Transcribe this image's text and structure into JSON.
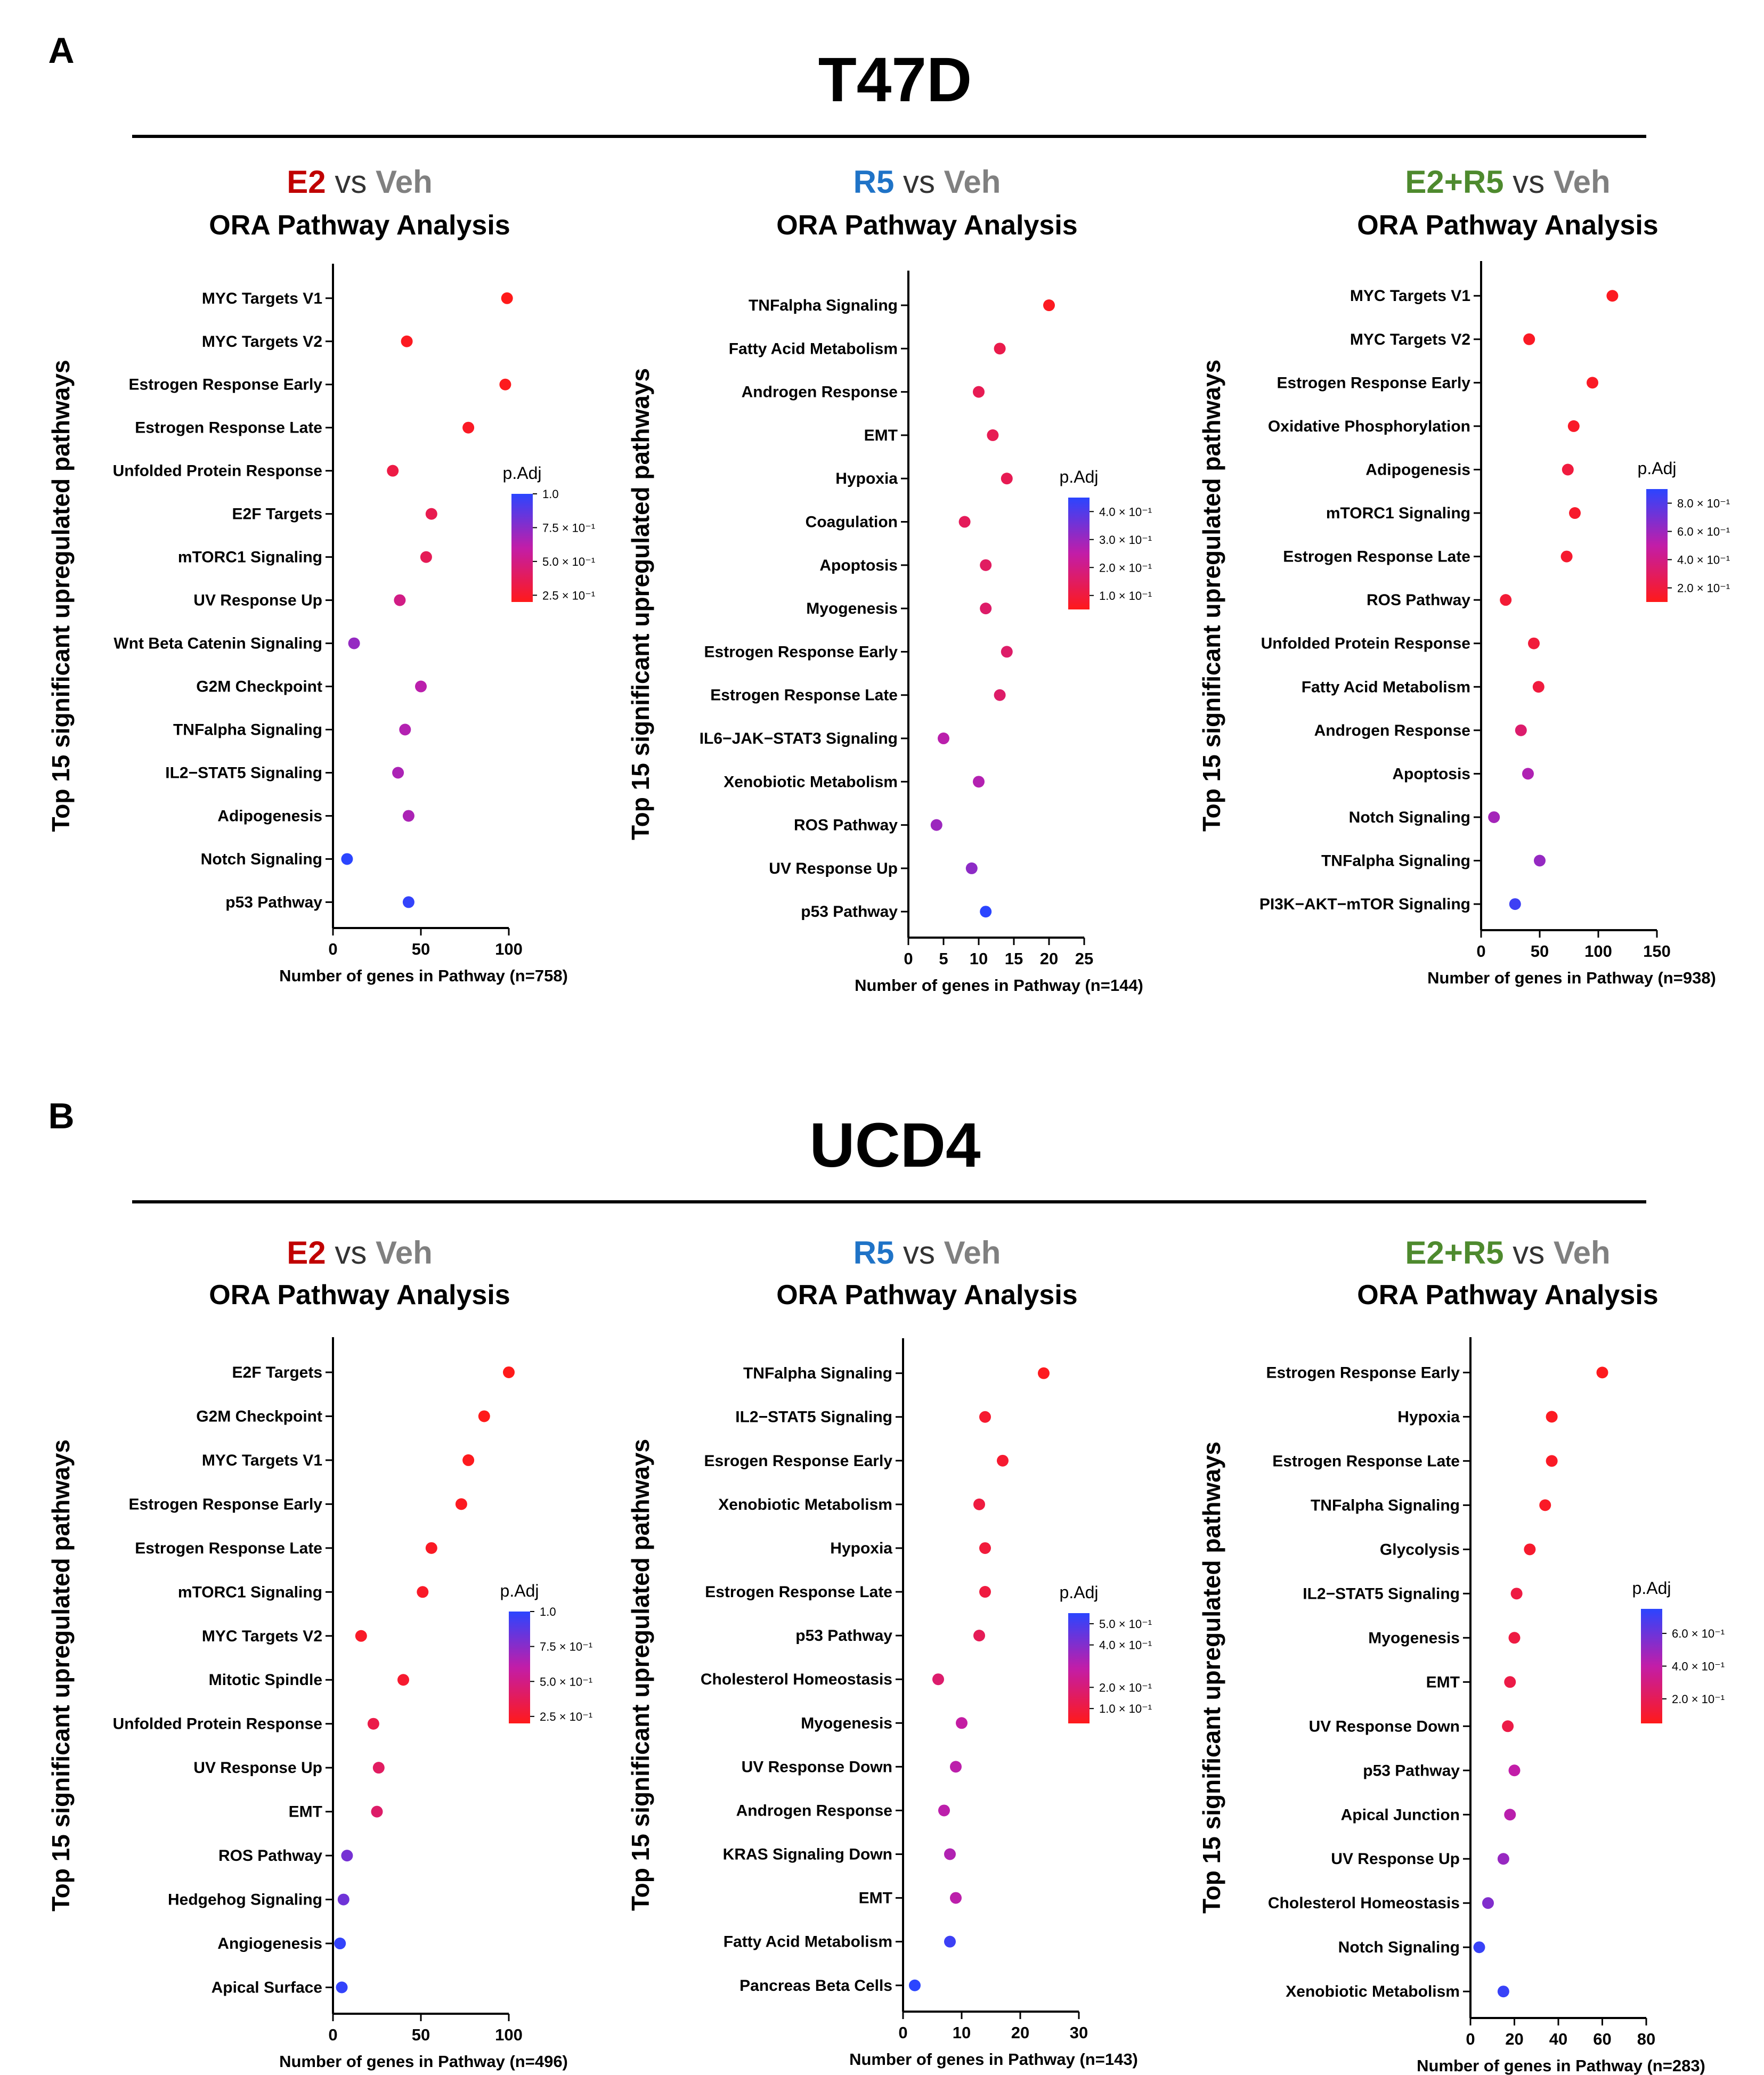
{
  "sections": [
    {
      "letter": "A",
      "title": "T47D"
    },
    {
      "letter": "B",
      "title": "UCD4"
    }
  ],
  "palette": {
    "E2": "#c00000",
    "R5": "#1f73c7",
    "E2+R5": "#4e8a2e",
    "Veh": "#808080",
    "vs": "#333333",
    "low": "#ff1a1a",
    "high": "#2b45ff"
  },
  "chart_data": [
    {
      "type": "scatter",
      "section": "T47D",
      "title_parts": [
        {
          "text": "E2",
          "key": "E2"
        },
        {
          "text": " vs ",
          "key": "vs"
        },
        {
          "text": "Veh",
          "key": "Veh"
        }
      ],
      "subtitle": "ORA Pathway Analysis",
      "ylabel": "Top 15 significant upregulated pathways",
      "xlabel": "Number of genes in Pathway (n=758)",
      "xlim": [
        0,
        100
      ],
      "xticks": [
        0,
        50,
        100
      ],
      "legend_title": "p.Adj",
      "legend_min": 0.2,
      "legend_max": 1.0,
      "legend_ticks": [
        {
          "label": "1.0",
          "v": 1.0
        },
        {
          "label": "7.5 × 10⁻¹",
          "v": 0.75
        },
        {
          "label": "5.0 × 10⁻¹",
          "v": 0.5
        },
        {
          "label": "2.5 × 10⁻¹",
          "v": 0.25
        }
      ],
      "points": [
        {
          "pathway": "MYC Targets V1",
          "x": 99,
          "padj": 0.2
        },
        {
          "pathway": "MYC Targets V2",
          "x": 42,
          "padj": 0.22
        },
        {
          "pathway": "Estrogen Response Early",
          "x": 98,
          "padj": 0.21
        },
        {
          "pathway": "Estrogen Response Late",
          "x": 77,
          "padj": 0.23
        },
        {
          "pathway": "Unfolded Protein Response",
          "x": 34,
          "padj": 0.32
        },
        {
          "pathway": "E2F Targets",
          "x": 56,
          "padj": 0.35
        },
        {
          "pathway": "mTORC1 Signaling",
          "x": 53,
          "padj": 0.37
        },
        {
          "pathway": "UV Response Up",
          "x": 38,
          "padj": 0.5
        },
        {
          "pathway": "Wnt Beta Catenin Signaling",
          "x": 12,
          "padj": 0.72
        },
        {
          "pathway": "G2M Checkpoint",
          "x": 50,
          "padj": 0.62
        },
        {
          "pathway": "TNFalpha Signaling",
          "x": 41,
          "padj": 0.64
        },
        {
          "pathway": "IL2−STAT5 Signaling",
          "x": 37,
          "padj": 0.66
        },
        {
          "pathway": "Adipogenesis",
          "x": 43,
          "padj": 0.66
        },
        {
          "pathway": "Notch Signaling",
          "x": 8,
          "padj": 1.0
        },
        {
          "pathway": "p53 Pathway",
          "x": 43,
          "padj": 0.98
        }
      ]
    },
    {
      "type": "scatter",
      "section": "T47D",
      "title_parts": [
        {
          "text": "R5",
          "key": "R5"
        },
        {
          "text": " vs ",
          "key": "vs"
        },
        {
          "text": "Veh",
          "key": "Veh"
        }
      ],
      "subtitle": "ORA Pathway Analysis",
      "ylabel": "Top 15 significant upregulated pathways",
      "xlabel": "Number of genes in Pathway (n=144)",
      "xlim": [
        0,
        25
      ],
      "xticks": [
        0,
        5,
        10,
        15,
        20,
        25
      ],
      "legend_title": "p.Adj",
      "legend_min": 0.05,
      "legend_max": 0.45,
      "legend_ticks": [
        {
          "label": "4.0 × 10⁻¹",
          "v": 0.4
        },
        {
          "label": "3.0 × 10⁻¹",
          "v": 0.3
        },
        {
          "label": "2.0 × 10⁻¹",
          "v": 0.2
        },
        {
          "label": "1.0 × 10⁻¹",
          "v": 0.1
        }
      ],
      "points": [
        {
          "pathway": "TNFalpha Signaling",
          "x": 20,
          "padj": 0.06
        },
        {
          "pathway": "Fatty Acid Metabolism",
          "x": 13,
          "padj": 0.12
        },
        {
          "pathway": "Androgen Response",
          "x": 10,
          "padj": 0.13
        },
        {
          "pathway": "EMT",
          "x": 12,
          "padj": 0.13
        },
        {
          "pathway": "Hypoxia",
          "x": 14,
          "padj": 0.13
        },
        {
          "pathway": "Coagulation",
          "x": 8,
          "padj": 0.14
        },
        {
          "pathway": "Apoptosis",
          "x": 11,
          "padj": 0.15
        },
        {
          "pathway": "Myogenesis",
          "x": 11,
          "padj": 0.16
        },
        {
          "pathway": "Estrogen Response Early",
          "x": 14,
          "padj": 0.16
        },
        {
          "pathway": "Estrogen Response Late",
          "x": 13,
          "padj": 0.16
        },
        {
          "pathway": "IL6−JAK−STAT3 Signaling",
          "x": 5,
          "padj": 0.26
        },
        {
          "pathway": "Xenobiotic Metabolism",
          "x": 10,
          "padj": 0.27
        },
        {
          "pathway": "ROS Pathway",
          "x": 4,
          "padj": 0.3
        },
        {
          "pathway": "UV Response Up",
          "x": 9,
          "padj": 0.32
        },
        {
          "pathway": "p53 Pathway",
          "x": 11,
          "padj": 0.45
        }
      ]
    },
    {
      "type": "scatter",
      "section": "T47D",
      "title_parts": [
        {
          "text": "E2+R5",
          "key": "E2+R5"
        },
        {
          "text": " vs ",
          "key": "vs"
        },
        {
          "text": "Veh",
          "key": "Veh"
        }
      ],
      "subtitle": "ORA Pathway Analysis",
      "ylabel": "Top 15 significant upregulated pathways",
      "xlabel": "Number of genes in Pathway (n=938)",
      "xlim": [
        0,
        150
      ],
      "xticks": [
        0,
        50,
        100,
        150
      ],
      "legend_title": "p.Adj",
      "legend_min": 0.1,
      "legend_max": 0.9,
      "legend_ticks": [
        {
          "label": "8.0 × 10⁻¹",
          "v": 0.8
        },
        {
          "label": "6.0 × 10⁻¹",
          "v": 0.6
        },
        {
          "label": "4.0 × 10⁻¹",
          "v": 0.4
        },
        {
          "label": "2.0 × 10⁻¹",
          "v": 0.2
        }
      ],
      "points": [
        {
          "pathway": "MYC Targets V1",
          "x": 112,
          "padj": 0.12
        },
        {
          "pathway": "MYC Targets V2",
          "x": 41,
          "padj": 0.13
        },
        {
          "pathway": "Estrogen Response Early",
          "x": 95,
          "padj": 0.13
        },
        {
          "pathway": "Oxidative Phosphorylation",
          "x": 79,
          "padj": 0.14
        },
        {
          "pathway": "Adipogenesis",
          "x": 74,
          "padj": 0.2
        },
        {
          "pathway": "mTORC1 Signaling",
          "x": 80,
          "padj": 0.15
        },
        {
          "pathway": "Estrogen Response Late",
          "x": 73,
          "padj": 0.16
        },
        {
          "pathway": "ROS Pathway",
          "x": 21,
          "padj": 0.18
        },
        {
          "pathway": "Unfolded Protein Response",
          "x": 45,
          "padj": 0.19
        },
        {
          "pathway": "Fatty Acid Metabolism",
          "x": 49,
          "padj": 0.2
        },
        {
          "pathway": "Androgen Response",
          "x": 34,
          "padj": 0.33
        },
        {
          "pathway": "Apoptosis",
          "x": 40,
          "padj": 0.55
        },
        {
          "pathway": "Notch Signaling",
          "x": 11,
          "padj": 0.58
        },
        {
          "pathway": "TNFalpha Signaling",
          "x": 50,
          "padj": 0.62
        },
        {
          "pathway": "PI3K−AKT−mTOR Signaling",
          "x": 29,
          "padj": 0.85
        }
      ]
    },
    {
      "type": "scatter",
      "section": "UCD4",
      "title_parts": [
        {
          "text": "E2",
          "key": "E2"
        },
        {
          "text": " vs ",
          "key": "vs"
        },
        {
          "text": "Veh",
          "key": "Veh"
        }
      ],
      "subtitle": "ORA Pathway Analysis",
      "ylabel": "Top 15 significant upregulated pathways",
      "xlabel": "Number of genes in Pathway (n=496)",
      "xlim": [
        0,
        100
      ],
      "xticks": [
        0,
        50,
        100
      ],
      "legend_title": "p.Adj",
      "legend_min": 0.2,
      "legend_max": 1.0,
      "legend_ticks": [
        {
          "label": "1.0",
          "v": 1.0
        },
        {
          "label": "7.5 × 10⁻¹",
          "v": 0.75
        },
        {
          "label": "5.0 × 10⁻¹",
          "v": 0.5
        },
        {
          "label": "2.5 × 10⁻¹",
          "v": 0.25
        }
      ],
      "points": [
        {
          "pathway": "E2F Targets",
          "x": 100,
          "padj": 0.2
        },
        {
          "pathway": "G2M Checkpoint",
          "x": 86,
          "padj": 0.2
        },
        {
          "pathway": "MYC Targets V1",
          "x": 77,
          "padj": 0.21
        },
        {
          "pathway": "Estrogen Response Early",
          "x": 73,
          "padj": 0.22
        },
        {
          "pathway": "Estrogen Response Late",
          "x": 56,
          "padj": 0.23
        },
        {
          "pathway": "mTORC1 Signaling",
          "x": 51,
          "padj": 0.24
        },
        {
          "pathway": "MYC Targets V2",
          "x": 16,
          "padj": 0.24
        },
        {
          "pathway": "Mitotic Spindle",
          "x": 40,
          "padj": 0.26
        },
        {
          "pathway": "Unfolded Protein Response",
          "x": 23,
          "padj": 0.33
        },
        {
          "pathway": "UV Response Up",
          "x": 26,
          "padj": 0.4
        },
        {
          "pathway": "EMT",
          "x": 25,
          "padj": 0.42
        },
        {
          "pathway": "ROS Pathway",
          "x": 8,
          "padj": 0.8
        },
        {
          "pathway": "Hedgehog Signaling",
          "x": 6,
          "padj": 0.82
        },
        {
          "pathway": "Angiogenesis",
          "x": 4,
          "padj": 0.98
        },
        {
          "pathway": "Apical Surface",
          "x": 5,
          "padj": 0.98
        }
      ]
    },
    {
      "type": "scatter",
      "section": "UCD4",
      "title_parts": [
        {
          "text": "R5",
          "key": "R5"
        },
        {
          "text": " vs ",
          "key": "vs"
        },
        {
          "text": "Veh",
          "key": "Veh"
        }
      ],
      "subtitle": "ORA Pathway Analysis",
      "ylabel": "Top 15 significant upregulated pathways",
      "xlabel": "Number of genes in Pathway (n=143)",
      "xlim": [
        0,
        30
      ],
      "xticks": [
        0,
        10,
        20,
        30
      ],
      "legend_title": "p.Adj",
      "legend_min": 0.03,
      "legend_max": 0.55,
      "legend_ticks": [
        {
          "label": "5.0 × 10⁻¹",
          "v": 0.5
        },
        {
          "label": "4.0 × 10⁻¹",
          "v": 0.4
        },
        {
          "label": "2.0 × 10⁻¹",
          "v": 0.2
        },
        {
          "label": "1.0 × 10⁻¹",
          "v": 0.1
        }
      ],
      "points": [
        {
          "pathway": "TNFalpha Signaling",
          "x": 24,
          "padj": 0.04
        },
        {
          "pathway": "IL2−STAT5 Signaling",
          "x": 14,
          "padj": 0.07
        },
        {
          "pathway": "Esrogen Response Early",
          "x": 17,
          "padj": 0.07
        },
        {
          "pathway": "Xenobiotic Metabolism",
          "x": 13,
          "padj": 0.1
        },
        {
          "pathway": "Hypoxia",
          "x": 14,
          "padj": 0.09
        },
        {
          "pathway": "Estrogen Response Late",
          "x": 14,
          "padj": 0.1
        },
        {
          "pathway": "p53 Pathway",
          "x": 13,
          "padj": 0.14
        },
        {
          "pathway": "Cholesterol Homeostasis",
          "x": 6,
          "padj": 0.18
        },
        {
          "pathway": "Myogenesis",
          "x": 10,
          "padj": 0.28
        },
        {
          "pathway": "UV Response Down",
          "x": 9,
          "padj": 0.3
        },
        {
          "pathway": "Androgen Response",
          "x": 7,
          "padj": 0.3
        },
        {
          "pathway": "KRAS Signaling Down",
          "x": 8,
          "padj": 0.32
        },
        {
          "pathway": "EMT",
          "x": 9,
          "padj": 0.3
        },
        {
          "pathway": "Fatty Acid Metabolism",
          "x": 8,
          "padj": 0.52
        },
        {
          "pathway": "Pancreas Beta Cells",
          "x": 2,
          "padj": 0.55
        }
      ]
    },
    {
      "type": "scatter",
      "section": "UCD4",
      "title_parts": [
        {
          "text": "E2+R5",
          "key": "E2+R5"
        },
        {
          "text": " vs ",
          "key": "vs"
        },
        {
          "text": "Veh",
          "key": "Veh"
        }
      ],
      "subtitle": "ORA Pathway Analysis",
      "ylabel": "Top 15 significant upregulated pathways",
      "xlabel": "Number of genes in Pathway (n=283)",
      "xlim": [
        0,
        80
      ],
      "xticks": [
        0,
        20,
        40,
        60,
        80
      ],
      "legend_title": "p.Adj",
      "legend_min": 0.05,
      "legend_max": 0.75,
      "legend_ticks": [
        {
          "label": "6.0 × 10⁻¹",
          "v": 0.6
        },
        {
          "label": "4.0 × 10⁻¹",
          "v": 0.4
        },
        {
          "label": "2.0 × 10⁻¹",
          "v": 0.2
        }
      ],
      "points": [
        {
          "pathway": "Estrogen Response Early",
          "x": 60,
          "padj": 0.06
        },
        {
          "pathway": "Hypoxia",
          "x": 37,
          "padj": 0.07
        },
        {
          "pathway": "Estrogen Response Late",
          "x": 37,
          "padj": 0.08
        },
        {
          "pathway": "TNFalpha Signaling",
          "x": 34,
          "padj": 0.08
        },
        {
          "pathway": "Glycolysis",
          "x": 27,
          "padj": 0.1
        },
        {
          "pathway": "IL2−STAT5 Signaling",
          "x": 21,
          "padj": 0.15
        },
        {
          "pathway": "Myogenesis",
          "x": 20,
          "padj": 0.15
        },
        {
          "pathway": "EMT",
          "x": 18,
          "padj": 0.16
        },
        {
          "pathway": "UV Response Down",
          "x": 17,
          "padj": 0.16
        },
        {
          "pathway": "p53 Pathway",
          "x": 20,
          "padj": 0.4
        },
        {
          "pathway": "Apical Junction",
          "x": 18,
          "padj": 0.42
        },
        {
          "pathway": "UV Response Up",
          "x": 15,
          "padj": 0.5
        },
        {
          "pathway": "Cholesterol Homeostasis",
          "x": 8,
          "padj": 0.55
        },
        {
          "pathway": "Notch Signaling",
          "x": 4,
          "padj": 0.72
        },
        {
          "pathway": "Xenobiotic Metabolism",
          "x": 15,
          "padj": 0.72
        }
      ]
    }
  ]
}
